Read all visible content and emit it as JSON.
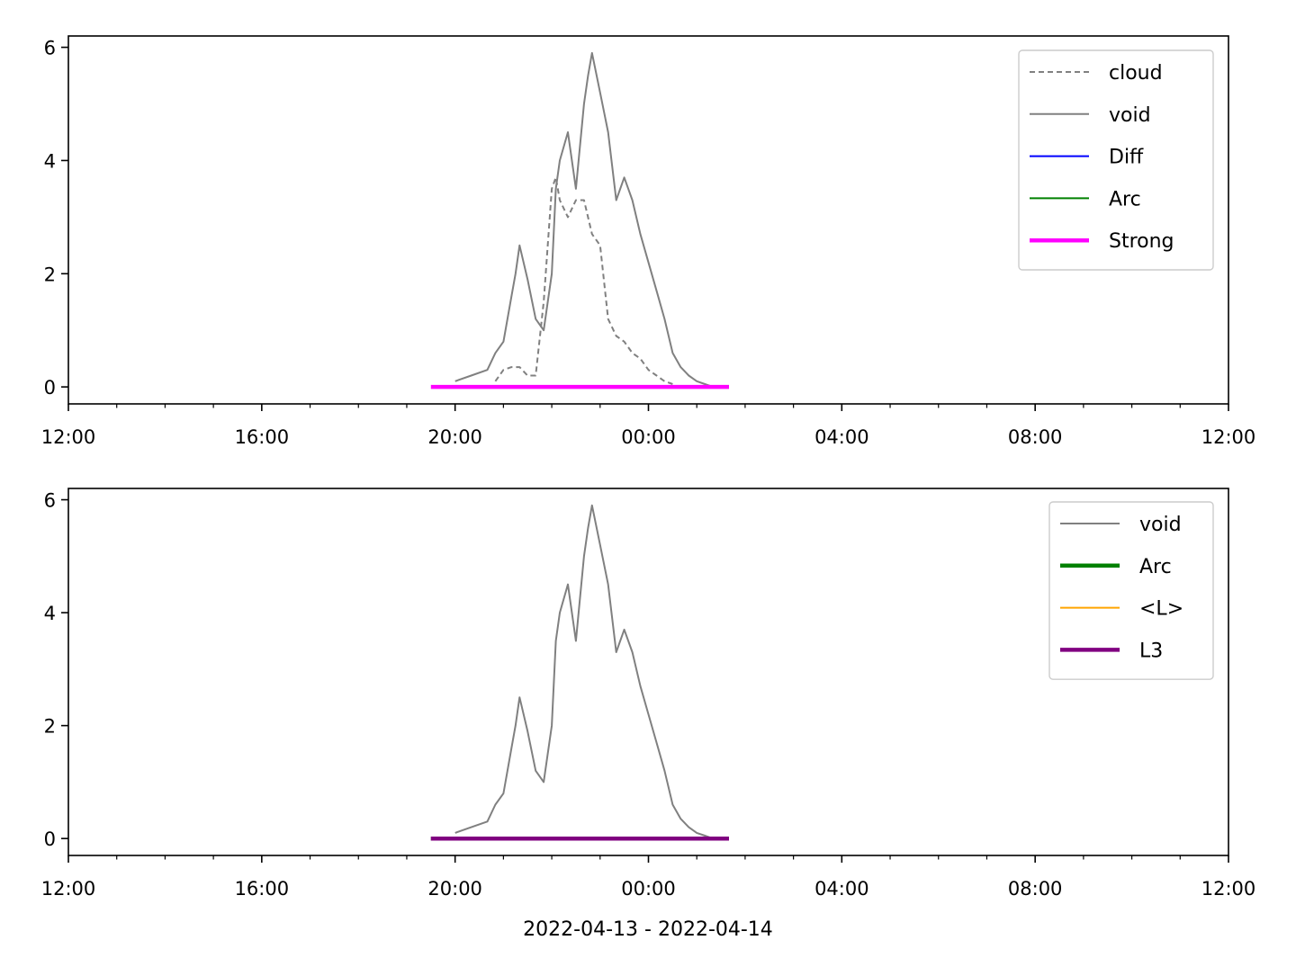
{
  "figure": {
    "xlabel": "2022-04-13 - 2022-04-14"
  },
  "chart_data": [
    {
      "type": "line",
      "x_axis": {
        "range": [
          "2022-04-13 12:00",
          "2022-04-14 12:00"
        ],
        "ticks": [
          "2022-04-13 12:00",
          "2022-04-13 16:00",
          "2022-04-13 20:00",
          "2022-04-14 00:00",
          "2022-04-14 04:00",
          "2022-04-14 08:00",
          "2022-04-14 12:00"
        ],
        "tick_labels": [
          "12:00",
          "16:00",
          "20:00",
          "00:00",
          "04:00",
          "08:00",
          "12:00"
        ],
        "minor_tick_interval_hours": 1
      },
      "y_axis": {
        "range": [
          -0.3,
          6.2
        ],
        "ticks": [
          0,
          2,
          4,
          6
        ],
        "tick_labels": [
          "0",
          "2",
          "4",
          "6"
        ]
      },
      "legend": {
        "position": "top-right",
        "entries": [
          "cloud",
          "void",
          "Diff",
          "Arc",
          "Strong"
        ]
      },
      "series": [
        {
          "name": "cloud",
          "color": "#808080",
          "style": "dashed",
          "x": [
            "2022-04-13 20:50",
            "2022-04-13 21:00",
            "2022-04-13 21:10",
            "2022-04-13 21:20",
            "2022-04-13 21:30",
            "2022-04-13 21:40",
            "2022-04-13 21:50",
            "2022-04-13 22:00",
            "2022-04-13 22:05",
            "2022-04-13 22:10",
            "2022-04-13 22:20",
            "2022-04-13 22:30",
            "2022-04-13 22:40",
            "2022-04-13 22:50",
            "2022-04-13 23:00",
            "2022-04-13 23:10",
            "2022-04-13 23:20",
            "2022-04-13 23:30",
            "2022-04-13 23:40",
            "2022-04-13 23:50",
            "2022-04-14 00:00",
            "2022-04-14 00:10",
            "2022-04-14 00:20",
            "2022-04-14 00:30"
          ],
          "y": [
            0.1,
            0.3,
            0.35,
            0.35,
            0.2,
            0.2,
            1.5,
            3.5,
            3.7,
            3.3,
            3.0,
            3.3,
            3.3,
            2.7,
            2.5,
            1.2,
            0.9,
            0.8,
            0.6,
            0.5,
            0.3,
            0.2,
            0.1,
            0.05
          ]
        },
        {
          "name": "void",
          "color": "#808080",
          "style": "solid",
          "x": [
            "2022-04-13 20:00",
            "2022-04-13 20:20",
            "2022-04-13 20:40",
            "2022-04-13 20:50",
            "2022-04-13 21:00",
            "2022-04-13 21:10",
            "2022-04-13 21:15",
            "2022-04-13 21:20",
            "2022-04-13 21:30",
            "2022-04-13 21:40",
            "2022-04-13 21:50",
            "2022-04-13 22:00",
            "2022-04-13 22:05",
            "2022-04-13 22:10",
            "2022-04-13 22:20",
            "2022-04-13 22:30",
            "2022-04-13 22:40",
            "2022-04-13 22:45",
            "2022-04-13 22:50",
            "2022-04-13 23:00",
            "2022-04-13 23:10",
            "2022-04-13 23:20",
            "2022-04-13 23:30",
            "2022-04-13 23:40",
            "2022-04-13 23:50",
            "2022-04-14 00:00",
            "2022-04-14 00:10",
            "2022-04-14 00:20",
            "2022-04-14 00:30",
            "2022-04-14 00:40",
            "2022-04-14 00:50",
            "2022-04-14 01:00",
            "2022-04-14 01:10",
            "2022-04-14 01:20"
          ],
          "y": [
            0.1,
            0.2,
            0.3,
            0.6,
            0.8,
            1.6,
            2.0,
            2.5,
            1.9,
            1.2,
            1.0,
            2.0,
            3.5,
            4.0,
            4.5,
            3.5,
            5.0,
            5.5,
            5.9,
            5.2,
            4.5,
            3.3,
            3.7,
            3.3,
            2.7,
            2.2,
            1.7,
            1.2,
            0.6,
            0.35,
            0.2,
            0.1,
            0.05,
            0.0
          ]
        },
        {
          "name": "Diff",
          "color": "#0000ff",
          "x": [],
          "y": []
        },
        {
          "name": "Arc",
          "color": "#008000",
          "x": [],
          "y": []
        },
        {
          "name": "Strong",
          "color": "#ff00ff",
          "style": "solid-thick",
          "x": [
            "2022-04-13 19:30",
            "2022-04-14 01:40"
          ],
          "y": [
            0,
            0
          ]
        }
      ]
    },
    {
      "type": "line",
      "x_axis": {
        "range": [
          "2022-04-13 12:00",
          "2022-04-14 12:00"
        ],
        "ticks": [
          "2022-04-13 12:00",
          "2022-04-13 16:00",
          "2022-04-13 20:00",
          "2022-04-14 00:00",
          "2022-04-14 04:00",
          "2022-04-14 08:00",
          "2022-04-14 12:00"
        ],
        "tick_labels": [
          "12:00",
          "16:00",
          "20:00",
          "00:00",
          "04:00",
          "08:00",
          "12:00"
        ],
        "minor_tick_interval_hours": 1
      },
      "y_axis": {
        "range": [
          -0.3,
          6.2
        ],
        "ticks": [
          0,
          2,
          4,
          6
        ],
        "tick_labels": [
          "0",
          "2",
          "4",
          "6"
        ]
      },
      "legend": {
        "position": "top-right",
        "entries": [
          "void",
          "Arc",
          "<L>",
          "L3"
        ]
      },
      "series": [
        {
          "name": "void",
          "color": "#808080",
          "style": "solid",
          "x": [
            "2022-04-13 20:00",
            "2022-04-13 20:20",
            "2022-04-13 20:40",
            "2022-04-13 20:50",
            "2022-04-13 21:00",
            "2022-04-13 21:10",
            "2022-04-13 21:15",
            "2022-04-13 21:20",
            "2022-04-13 21:30",
            "2022-04-13 21:40",
            "2022-04-13 21:50",
            "2022-04-13 22:00",
            "2022-04-13 22:05",
            "2022-04-13 22:10",
            "2022-04-13 22:20",
            "2022-04-13 22:30",
            "2022-04-13 22:40",
            "2022-04-13 22:45",
            "2022-04-13 22:50",
            "2022-04-13 23:00",
            "2022-04-13 23:10",
            "2022-04-13 23:20",
            "2022-04-13 23:30",
            "2022-04-13 23:40",
            "2022-04-13 23:50",
            "2022-04-14 00:00",
            "2022-04-14 00:10",
            "2022-04-14 00:20",
            "2022-04-14 00:30",
            "2022-04-14 00:40",
            "2022-04-14 00:50",
            "2022-04-14 01:00",
            "2022-04-14 01:10",
            "2022-04-14 01:20"
          ],
          "y": [
            0.1,
            0.2,
            0.3,
            0.6,
            0.8,
            1.6,
            2.0,
            2.5,
            1.9,
            1.2,
            1.0,
            2.0,
            3.5,
            4.0,
            4.5,
            3.5,
            5.0,
            5.5,
            5.9,
            5.2,
            4.5,
            3.3,
            3.7,
            3.3,
            2.7,
            2.2,
            1.7,
            1.2,
            0.6,
            0.35,
            0.2,
            0.1,
            0.05,
            0.0
          ]
        },
        {
          "name": "Arc",
          "color": "#008000",
          "style": "solid-thick",
          "x": [
            "2022-04-13 19:30",
            "2022-04-14 01:40"
          ],
          "y": [
            0,
            0
          ]
        },
        {
          "name": "<L>",
          "color": "#ffa500",
          "x": [],
          "y": []
        },
        {
          "name": "L3",
          "color": "#800080",
          "style": "solid-thick",
          "x": [
            "2022-04-13 19:30",
            "2022-04-14 01:40"
          ],
          "y": [
            0,
            0
          ]
        }
      ]
    }
  ]
}
